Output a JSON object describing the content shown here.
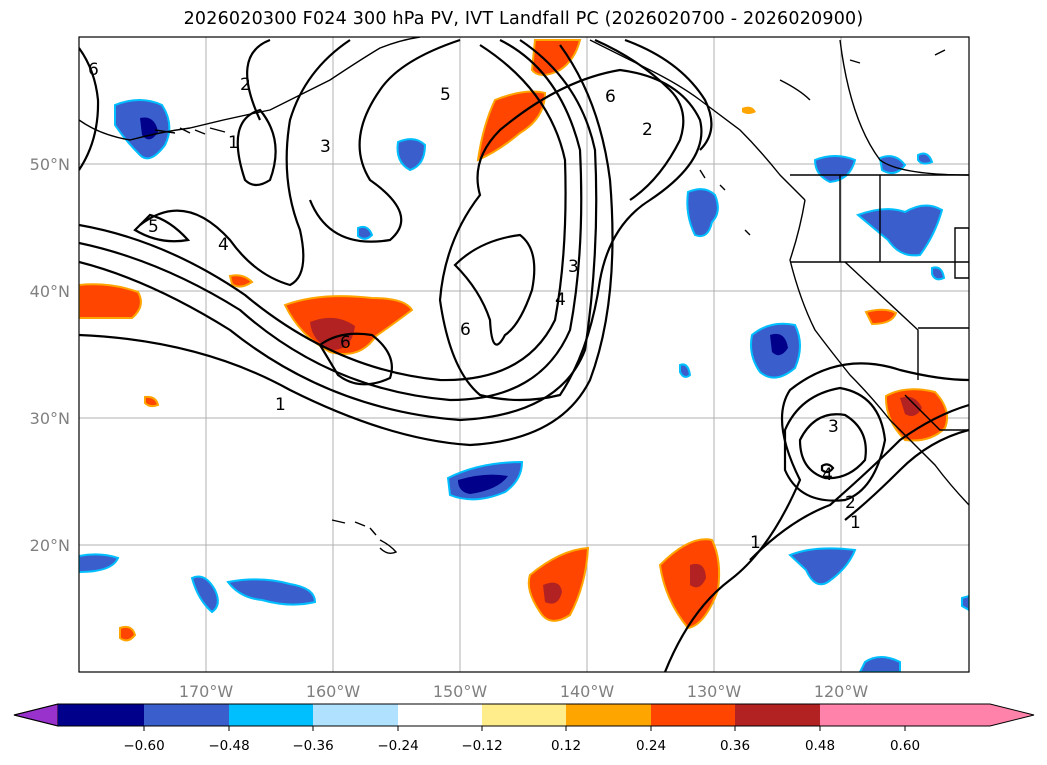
{
  "title": "2026020300 F024 300 hPa PV, IVT Landfall PC (2026020700 - 2026020900)",
  "map": {
    "lon_range": [
      -180,
      -110
    ],
    "lat_range": [
      10,
      60
    ],
    "lon_ticks": [
      "170°W",
      "160°W",
      "150°W",
      "140°W",
      "130°W",
      "120°W"
    ],
    "lat_ticks": [
      "50°N",
      "40°N",
      "30°N",
      "20°N"
    ]
  },
  "pv_contour_labels": [
    "1",
    "2",
    "3",
    "4",
    "5",
    "6",
    "6",
    "5",
    "4",
    "3",
    "2",
    "1",
    "6",
    "6",
    "5",
    "4",
    "3",
    "2",
    "1",
    "1",
    "2",
    "3",
    "4"
  ],
  "colorbar": {
    "ticks": [
      "−0.60",
      "−0.48",
      "−0.36",
      "−0.24",
      "−0.12",
      "0.12",
      "0.24",
      "0.36",
      "0.48",
      "0.60"
    ],
    "colors": [
      "#9932cc",
      "#00008b",
      "#3a5fcd",
      "#00bfff",
      "#b0e2ff",
      "#ffffff",
      "#ffec8b",
      "#ffa500",
      "#ff4500",
      "#b22222",
      "#ff82ab"
    ]
  }
}
